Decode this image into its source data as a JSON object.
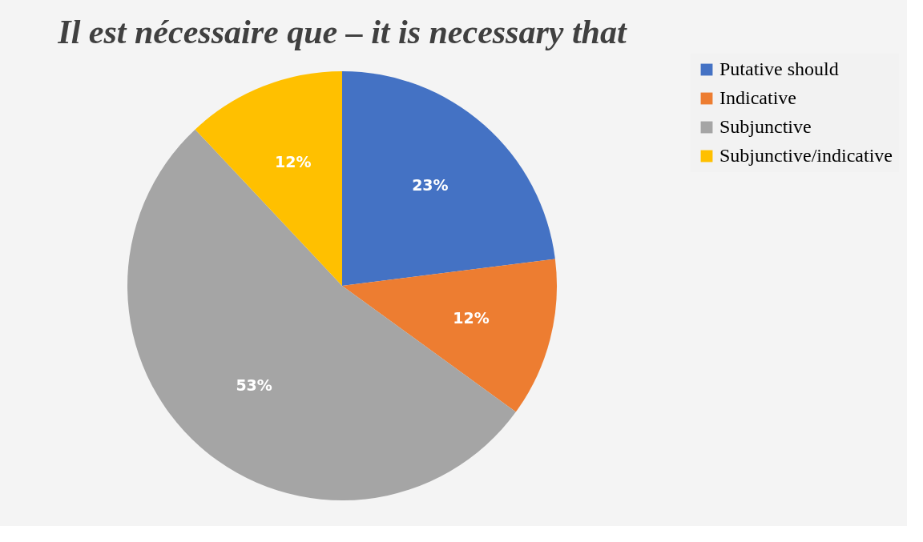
{
  "chart_data": {
    "type": "pie",
    "title": "Il est nécessaire que – it is necessary that",
    "categories": [
      "Putative should",
      "Indicative",
      "Subjunctive",
      "Subjunctive/indicative"
    ],
    "values": [
      23,
      12,
      53,
      12
    ],
    "colors": [
      "#4472c4",
      "#ed7d31",
      "#a5a5a5",
      "#ffc000"
    ],
    "value_labels": [
      "23%",
      "12%",
      "53%",
      "12%"
    ],
    "legend": "right"
  }
}
